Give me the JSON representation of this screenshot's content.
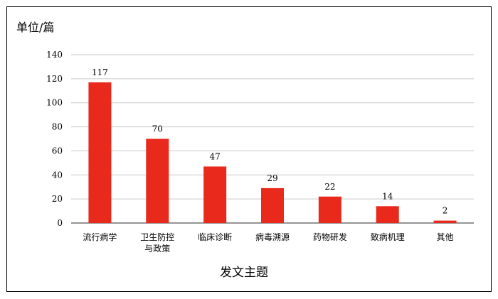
{
  "chart_data": {
    "type": "bar",
    "title": "",
    "ylabel": "单位/篇",
    "xlabel": "发文主题",
    "ylim": [
      0,
      140
    ],
    "yticks": [
      0,
      20,
      40,
      60,
      80,
      100,
      120,
      140
    ],
    "categories": [
      "流行病学",
      "卫生防控\n与政策",
      "临床诊断",
      "病毒溯源",
      "药物研发",
      "致病机理",
      "其他"
    ],
    "values": [
      117,
      70,
      47,
      29,
      22,
      14,
      2
    ],
    "data_labels": [
      "117",
      "70",
      "47",
      "29",
      "22",
      "14",
      "2"
    ],
    "bar_color": "#e8291c",
    "grid": true,
    "legend": "none"
  }
}
